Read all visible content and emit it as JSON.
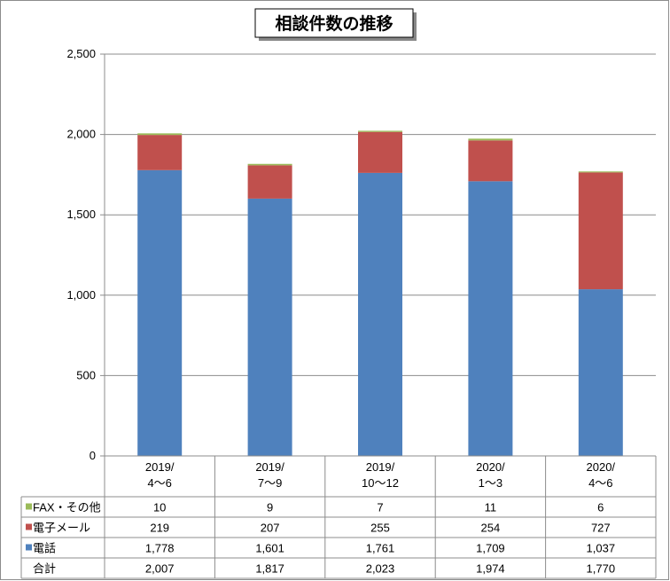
{
  "chart_data": {
    "type": "bar",
    "stacked": true,
    "title": "相談件数の推移",
    "categories": [
      [
        "2019/",
        "4～6"
      ],
      [
        "2019/",
        "7～9"
      ],
      [
        "2019/",
        "10～12"
      ],
      [
        "2020/",
        "1～3"
      ],
      [
        "2020/",
        "4～6"
      ]
    ],
    "ylim": [
      0,
      2500
    ],
    "yticks": [
      "0",
      "500",
      "1,000",
      "1,500",
      "2,000",
      "2,500"
    ],
    "grid": true,
    "series": [
      {
        "name": "電話",
        "color": "#4f81bd",
        "values": [
          1778,
          1601,
          1761,
          1709,
          1037
        ],
        "labels": [
          "1,778",
          "1,601",
          "1,761",
          "1,709",
          "1,037"
        ]
      },
      {
        "name": "電子メール",
        "color": "#c0504d",
        "values": [
          219,
          207,
          255,
          254,
          727
        ],
        "labels": [
          "219",
          "207",
          "255",
          "254",
          "727"
        ]
      },
      {
        "name": "FAX・その他",
        "color": "#9bbb59",
        "values": [
          10,
          9,
          7,
          11,
          6
        ],
        "labels": [
          "10",
          "9",
          "7",
          "11",
          "6"
        ]
      }
    ],
    "total": {
      "name": "合計",
      "labels": [
        "2,007",
        "1,817",
        "2,023",
        "1,974",
        "1,770"
      ]
    }
  }
}
